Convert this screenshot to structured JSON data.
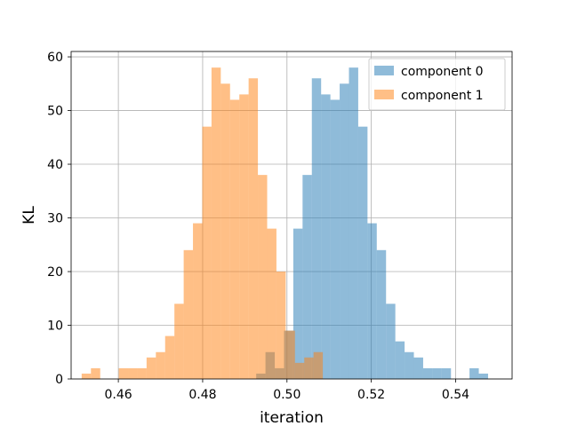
{
  "chart_data": {
    "type": "histogram",
    "xlabel": "iteration",
    "ylabel": "KL",
    "xlim": [
      0.4488,
      0.5534
    ],
    "ylim": [
      0,
      61
    ],
    "xticks": [
      0.46,
      0.48,
      0.5,
      0.52,
      0.54
    ],
    "xtick_labels": [
      "0.46",
      "0.48",
      "0.50",
      "0.52",
      "0.54"
    ],
    "yticks": [
      0,
      10,
      20,
      30,
      40,
      50,
      60
    ],
    "ytick_labels": [
      "0",
      "10",
      "20",
      "30",
      "40",
      "50",
      "60"
    ],
    "grid": true,
    "legend_position": "top-right",
    "series": [
      {
        "name": "component 0",
        "color": "#1f77b4",
        "alpha": 0.5,
        "bins": [
          [
            0.4927,
            0.4949,
            1
          ],
          [
            0.4949,
            0.4971,
            5
          ],
          [
            0.4971,
            0.4993,
            2
          ],
          [
            0.4993,
            0.5015,
            9
          ],
          [
            0.5015,
            0.5037,
            28
          ],
          [
            0.5037,
            0.5059,
            38
          ],
          [
            0.5059,
            0.5081,
            56
          ],
          [
            0.5081,
            0.5103,
            53
          ],
          [
            0.5103,
            0.5125,
            52
          ],
          [
            0.5125,
            0.5147,
            55
          ],
          [
            0.5147,
            0.5169,
            58
          ],
          [
            0.5169,
            0.5191,
            47
          ],
          [
            0.5191,
            0.5213,
            29
          ],
          [
            0.5213,
            0.5235,
            24
          ],
          [
            0.5235,
            0.5257,
            14
          ],
          [
            0.5257,
            0.5279,
            7
          ],
          [
            0.5279,
            0.5301,
            5
          ],
          [
            0.5301,
            0.5323,
            4
          ],
          [
            0.5323,
            0.5345,
            2
          ],
          [
            0.5345,
            0.5367,
            2
          ],
          [
            0.5367,
            0.5389,
            2
          ],
          [
            0.5389,
            0.5411,
            0
          ],
          [
            0.5411,
            0.5433,
            0
          ],
          [
            0.5433,
            0.5455,
            2
          ],
          [
            0.5455,
            0.5477,
            1
          ]
        ]
      },
      {
        "name": "component 1",
        "color": "#ff7f0e",
        "alpha": 0.5,
        "bins": [
          [
            0.4513,
            0.4535,
            1
          ],
          [
            0.4535,
            0.4557,
            2
          ],
          [
            0.4557,
            0.4579,
            0
          ],
          [
            0.4579,
            0.4601,
            0
          ],
          [
            0.4601,
            0.4623,
            2
          ],
          [
            0.4623,
            0.4645,
            2
          ],
          [
            0.4645,
            0.4667,
            2
          ],
          [
            0.4667,
            0.4689,
            4
          ],
          [
            0.4689,
            0.4711,
            5
          ],
          [
            0.4711,
            0.4733,
            8
          ],
          [
            0.4733,
            0.4755,
            14
          ],
          [
            0.4755,
            0.4777,
            24
          ],
          [
            0.4777,
            0.4799,
            29
          ],
          [
            0.4799,
            0.4821,
            47
          ],
          [
            0.4821,
            0.4843,
            58
          ],
          [
            0.4843,
            0.4865,
            55
          ],
          [
            0.4865,
            0.4887,
            52
          ],
          [
            0.4887,
            0.4909,
            53
          ],
          [
            0.4909,
            0.4931,
            56
          ],
          [
            0.4931,
            0.4953,
            38
          ],
          [
            0.4953,
            0.4975,
            28
          ],
          [
            0.4975,
            0.4997,
            20
          ],
          [
            0.4997,
            0.5019,
            9
          ],
          [
            0.5019,
            0.5041,
            3
          ],
          [
            0.5041,
            0.5063,
            4
          ],
          [
            0.5063,
            0.5085,
            5
          ]
        ]
      }
    ]
  }
}
